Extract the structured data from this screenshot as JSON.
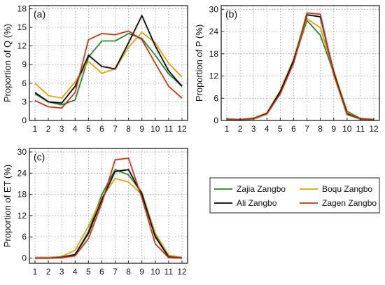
{
  "chart_data": [
    {
      "type": "line",
      "panel_label": "(a)",
      "ylabel": "Proportion of Q  (%)",
      "xlabel": "",
      "x": [
        1,
        2,
        3,
        4,
        5,
        6,
        7,
        8,
        9,
        10,
        11,
        12
      ],
      "xticks": [
        "1",
        "2",
        "3",
        "4",
        "5",
        "6",
        "7",
        "8",
        "9",
        "10",
        "11",
        "12"
      ],
      "ylim": [
        0,
        18.5
      ],
      "yticks": [
        0,
        3,
        6,
        9,
        12,
        15,
        18
      ],
      "grid": true,
      "series": [
        {
          "name": "Zajia Zangbo",
          "color": "#2e7d32",
          "values": [
            4.3,
            3.0,
            2.5,
            3.3,
            10.2,
            12.8,
            12.8,
            14.0,
            13.2,
            10.5,
            7.5,
            5.5
          ]
        },
        {
          "name": "Boqu Zangbo",
          "color": "#d4a017",
          "values": [
            6.0,
            4.0,
            3.6,
            6.2,
            9.5,
            7.6,
            8.3,
            11.8,
            14.2,
            12.5,
            9.2,
            7.0
          ]
        },
        {
          "name": "Ali  Zangbo",
          "color": "#000000",
          "values": [
            4.5,
            3.0,
            2.8,
            5.5,
            10.5,
            8.7,
            8.3,
            12.5,
            16.9,
            12.0,
            8.0,
            5.5
          ]
        },
        {
          "name": "Zagen Zangbo",
          "color": "#b03a1e",
          "values": [
            3.2,
            2.2,
            2.0,
            4.5,
            13.0,
            14.0,
            13.8,
            14.4,
            13.0,
            9.2,
            5.5,
            3.6
          ]
        }
      ]
    },
    {
      "type": "line",
      "panel_label": "(b)",
      "ylabel": "Proportion of P  (%)",
      "xlabel": "",
      "x": [
        1,
        2,
        3,
        4,
        5,
        6,
        7,
        8,
        9,
        10,
        11,
        12
      ],
      "xticks": [
        "1",
        "2",
        "3",
        "4",
        "5",
        "6",
        "7",
        "8",
        "9",
        "10",
        "11",
        "12"
      ],
      "ylim": [
        0,
        31
      ],
      "yticks": [
        0,
        6,
        12,
        18,
        24,
        30
      ],
      "grid": true,
      "series": [
        {
          "name": "Zajia Zangbo",
          "color": "#2e7d32",
          "values": [
            0.3,
            0.2,
            0.5,
            1.8,
            7.5,
            16.0,
            27.0,
            23.0,
            13.0,
            2.5,
            0.5,
            0.2
          ]
        },
        {
          "name": "Boqu Zangbo",
          "color": "#d4a017",
          "values": [
            0.3,
            0.2,
            0.6,
            2.0,
            8.0,
            16.5,
            27.5,
            25.0,
            13.5,
            2.0,
            0.4,
            0.2
          ]
        },
        {
          "name": "Ali  Zangbo",
          "color": "#000000",
          "values": [
            0.3,
            0.2,
            0.5,
            1.9,
            7.8,
            16.2,
            28.5,
            28.0,
            13.0,
            1.8,
            0.4,
            0.2
          ]
        },
        {
          "name": "Zagen Zangbo",
          "color": "#b03a1e",
          "values": [
            0.3,
            0.2,
            0.5,
            1.8,
            7.2,
            15.5,
            29.0,
            28.7,
            12.5,
            1.6,
            0.4,
            0.2
          ]
        }
      ]
    },
    {
      "type": "line",
      "panel_label": "(c)",
      "ylabel": "Proportion of ET  (%)",
      "xlabel": "",
      "x": [
        1,
        2,
        3,
        4,
        5,
        6,
        7,
        8,
        9,
        10,
        11,
        12
      ],
      "xticks": [
        "1",
        "2",
        "3",
        "4",
        "5",
        "6",
        "7",
        "8",
        "9",
        "10",
        "11",
        "12"
      ],
      "ylim": [
        -1.5,
        31
      ],
      "yticks": [
        0,
        6,
        12,
        18,
        24,
        30
      ],
      "grid": true,
      "series": [
        {
          "name": "Zajia Zangbo",
          "color": "#2e7d32",
          "values": [
            0,
            0,
            0.1,
            0.8,
            7.5,
            18.0,
            25.0,
            23.5,
            18.5,
            6.5,
            0.3,
            0
          ]
        },
        {
          "name": "Boqu Zangbo",
          "color": "#d4a017",
          "values": [
            0,
            0,
            0.4,
            2.2,
            9.0,
            17.0,
            22.5,
            21.5,
            18.0,
            7.0,
            0.8,
            0.1
          ]
        },
        {
          "name": "Ali  Zangbo",
          "color": "#000000",
          "values": [
            0,
            0,
            0.2,
            1.0,
            7.0,
            16.5,
            24.5,
            25.0,
            18.0,
            6.0,
            0.3,
            0
          ]
        },
        {
          "name": "Zagen Zangbo",
          "color": "#b03a1e",
          "values": [
            0,
            0,
            0.1,
            0.6,
            5.5,
            15.5,
            27.8,
            28.2,
            17.0,
            4.0,
            0.1,
            0
          ]
        }
      ]
    }
  ],
  "legend": {
    "items": [
      {
        "label": "Zajia Zangbo",
        "color": "#2e7d32"
      },
      {
        "label": "Boqu Zangbo",
        "color": "#d4a017"
      },
      {
        "label": "Ali  Zangbo",
        "color": "#000000"
      },
      {
        "label": "Zagen Zangbo",
        "color": "#b03a1e"
      }
    ]
  }
}
